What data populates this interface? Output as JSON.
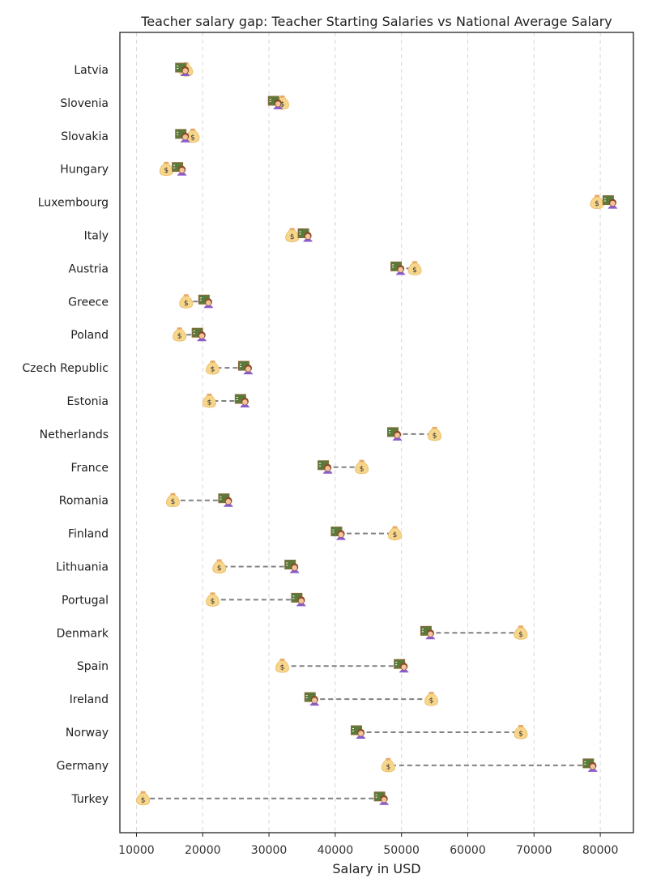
{
  "chart_data": {
    "type": "dumbbell",
    "title": "Teacher salary gap: Teacher Starting Salaries vs National Average Salary",
    "xlabel": "Salary in USD",
    "ylabel": "",
    "xlim": [
      7500,
      85000
    ],
    "xticks": [
      10000,
      20000,
      30000,
      40000,
      50000,
      60000,
      70000,
      80000
    ],
    "grid": "vertical dashed",
    "markers": {
      "teacher_starting_salary": "teacher-icon",
      "national_average_salary": "money-bag-icon"
    },
    "categories": [
      "Latvia",
      "Slovenia",
      "Slovakia",
      "Hungary",
      "Luxembourg",
      "Italy",
      "Austria",
      "Greece",
      "Poland",
      "Czech Republic",
      "Estonia",
      "Netherlands",
      "France",
      "Romania",
      "Finland",
      "Lithuania",
      "Portugal",
      "Denmark",
      "Spain",
      "Ireland",
      "Norway",
      "Germany",
      "Turkey"
    ],
    "series": [
      {
        "values": [
          17000,
          31000,
          17000,
          16500,
          81500,
          35500,
          49500,
          20500,
          19500,
          26500,
          26000,
          49000,
          38500,
          23500,
          40500,
          33500,
          34500,
          54000,
          50000,
          36500,
          43500,
          78500,
          47000
        ]
      },
      {
        "values": [
          17500,
          32000,
          18500,
          14500,
          79500,
          33500,
          52000,
          17500,
          16500,
          21500,
          21000,
          55000,
          44000,
          15500,
          49000,
          22500,
          21500,
          68000,
          32000,
          54500,
          68000,
          48000,
          11000
        ]
      }
    ]
  }
}
